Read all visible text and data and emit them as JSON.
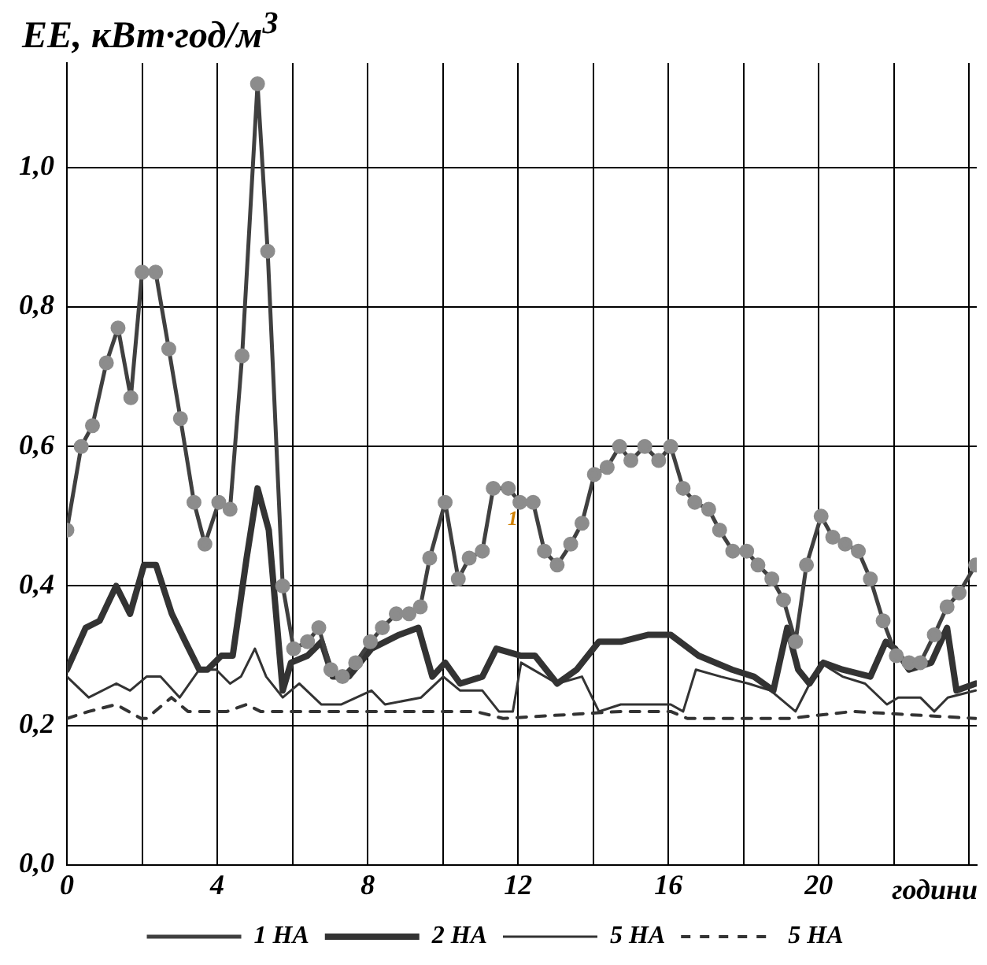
{
  "chart_data": {
    "type": "line",
    "ylabel": "EE, кВт·год/м$^{3}$",
    "xlabel": "години",
    "xlim": [
      0,
      24.2
    ],
    "xticks": [
      0,
      {
        "value": 2,
        "label": null
      },
      4,
      {
        "value": 6,
        "label": null
      },
      8,
      {
        "value": 10,
        "label": null
      },
      12,
      {
        "value": 14,
        "label": null
      },
      16,
      {
        "value": 18,
        "label": null
      },
      20,
      {
        "value": 22,
        "label": null
      },
      {
        "value": 24,
        "label": null
      }
    ],
    "ylim": [
      0,
      1.15
    ],
    "yticks": [
      {
        "value": 0,
        "label": "0,0"
      },
      {
        "value": 0.2,
        "label": "0,2"
      },
      {
        "value": 0.4,
        "label": "0,4"
      },
      {
        "value": 0.6,
        "label": "0,6"
      },
      {
        "value": 0.8,
        "label": "0,8"
      },
      {
        "value": 1,
        "label": "1,0"
      }
    ],
    "grid": true,
    "legend": "bottom",
    "annotations": [
      "1"
    ],
    "series": [
      {
        "name": "1 НА",
        "color": "#404040",
        "marker": "circle",
        "line_style": "solid",
        "x": [
          0,
          0.38,
          0.68,
          1.05,
          1.36,
          1.7,
          2.0,
          2.36,
          2.71,
          3.02,
          3.38,
          3.67,
          4.04,
          4.34,
          4.66,
          5.07,
          5.34,
          5.74,
          6.03,
          6.4,
          6.7,
          7.02,
          7.33,
          7.68,
          8.07,
          8.39,
          8.76,
          9.1,
          9.4,
          9.65,
          10.06,
          10.41,
          10.7,
          11.05,
          11.34,
          11.74,
          12.05,
          12.4,
          12.7,
          13.04,
          13.4,
          13.7,
          14.03,
          14.37,
          14.7,
          15.0,
          15.37,
          15.74,
          16.06,
          16.39,
          16.7,
          17.07,
          17.36,
          17.71,
          18.08,
          18.38,
          18.75,
          19.06,
          19.38,
          19.67,
          20.06,
          20.37,
          20.7,
          21.05,
          21.37,
          21.71,
          22.06,
          22.4,
          22.7,
          23.07,
          23.41,
          23.73,
          24.17
        ],
        "values": [
          0.48,
          0.6,
          0.63,
          0.72,
          0.77,
          0.67,
          0.85,
          0.85,
          0.74,
          0.64,
          0.52,
          0.46,
          0.52,
          0.51,
          0.73,
          1.12,
          0.88,
          0.4,
          0.31,
          0.32,
          0.34,
          0.28,
          0.27,
          0.29,
          0.32,
          0.34,
          0.36,
          0.36,
          0.37,
          0.44,
          0.52,
          0.41,
          0.44,
          0.45,
          0.54,
          0.54,
          0.52,
          0.52,
          0.45,
          0.43,
          0.46,
          0.49,
          0.56,
          0.57,
          0.6,
          0.58,
          0.6,
          0.58,
          0.6,
          0.54,
          0.52,
          0.51,
          0.48,
          0.45,
          0.45,
          0.43,
          0.41,
          0.38,
          0.32,
          0.43,
          0.5,
          0.47,
          0.46,
          0.45,
          0.41,
          0.35,
          0.3,
          0.29,
          0.29,
          0.33,
          0.37,
          0.39,
          0.43
        ]
      },
      {
        "name": "2 НА",
        "color": "#333333",
        "marker": "none",
        "line_style": "solid",
        "x": [
          0,
          0.5,
          0.87,
          1.31,
          1.68,
          2.05,
          2.37,
          2.79,
          3.15,
          3.52,
          3.74,
          4.11,
          4.41,
          4.78,
          5.07,
          5.37,
          5.74,
          5.96,
          6.4,
          6.77,
          7.07,
          7.5,
          8.1,
          8.84,
          9.35,
          9.72,
          10.06,
          10.46,
          11.05,
          11.42,
          12.08,
          12.45,
          13.04,
          13.56,
          14.15,
          14.73,
          15.47,
          16.06,
          16.8,
          17.69,
          18.27,
          18.79,
          19.16,
          19.45,
          19.75,
          20.12,
          20.63,
          21.37,
          21.78,
          22.03,
          22.4,
          22.99,
          23.41,
          23.66,
          24.17
        ],
        "values": [
          0.28,
          0.34,
          0.35,
          0.4,
          0.36,
          0.43,
          0.43,
          0.36,
          0.32,
          0.28,
          0.28,
          0.3,
          0.3,
          0.44,
          0.54,
          0.48,
          0.25,
          0.29,
          0.3,
          0.32,
          0.27,
          0.27,
          0.31,
          0.33,
          0.34,
          0.27,
          0.29,
          0.26,
          0.27,
          0.31,
          0.3,
          0.3,
          0.26,
          0.28,
          0.32,
          0.32,
          0.33,
          0.33,
          0.3,
          0.28,
          0.27,
          0.25,
          0.34,
          0.28,
          0.26,
          0.29,
          0.28,
          0.27,
          0.32,
          0.31,
          0.28,
          0.29,
          0.34,
          0.25,
          0.26
        ]
      },
      {
        "name": "5 НА",
        "color": "#333333",
        "marker": "none",
        "line_style": "solid",
        "x": [
          0,
          0.58,
          1.31,
          1.68,
          2.12,
          2.49,
          3.0,
          3.52,
          3.97,
          4.34,
          4.63,
          5.0,
          5.3,
          5.74,
          6.18,
          6.77,
          7.29,
          8.1,
          8.46,
          9.42,
          10.01,
          10.46,
          11.05,
          11.49,
          11.86,
          12.08,
          13.04,
          13.7,
          14.15,
          14.73,
          15.32,
          16.06,
          16.39,
          16.73,
          17.39,
          18.13,
          18.72,
          19.38,
          20.04,
          20.63,
          21.23,
          21.81,
          22.11,
          22.7,
          23.07,
          23.43,
          24.17
        ],
        "values": [
          0.27,
          0.24,
          0.26,
          0.25,
          0.27,
          0.27,
          0.24,
          0.28,
          0.28,
          0.26,
          0.27,
          0.31,
          0.27,
          0.24,
          0.26,
          0.23,
          0.23,
          0.25,
          0.23,
          0.24,
          0.27,
          0.25,
          0.25,
          0.22,
          0.22,
          0.29,
          0.26,
          0.27,
          0.22,
          0.23,
          0.23,
          0.23,
          0.22,
          0.28,
          0.27,
          0.26,
          0.25,
          0.22,
          0.29,
          0.27,
          0.26,
          0.23,
          0.24,
          0.24,
          0.22,
          0.24,
          0.25
        ]
      },
      {
        "name": "5 НА",
        "color": "#333333",
        "marker": "none",
        "line_style": "dashed",
        "x": [
          0,
          0.58,
          1.31,
          1.97,
          2.12,
          2.78,
          3.22,
          4.26,
          4.78,
          5.15,
          9.42,
          10.06,
          10.87,
          11.6,
          14.73,
          16.06,
          16.5,
          19.2,
          20.9,
          24.17
        ],
        "values": [
          0.21,
          0.22,
          0.23,
          0.21,
          0.21,
          0.24,
          0.22,
          0.22,
          0.23,
          0.22,
          0.22,
          0.22,
          0.22,
          0.21,
          0.22,
          0.22,
          0.21,
          0.21,
          0.22,
          0.21
        ]
      }
    ]
  }
}
